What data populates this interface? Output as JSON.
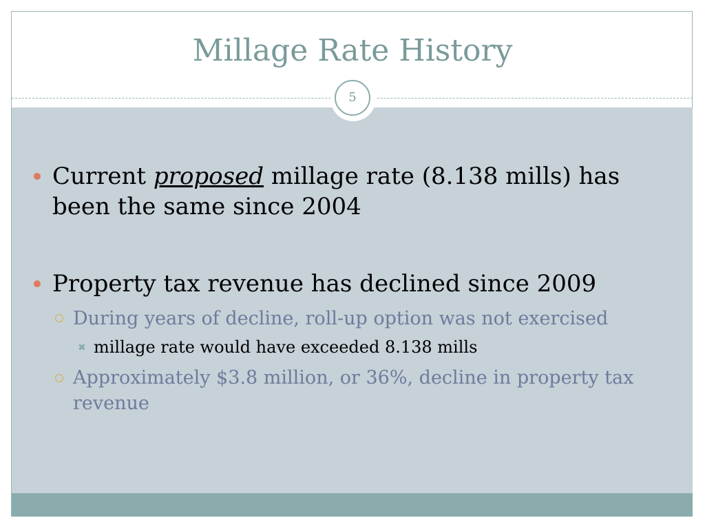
{
  "slide": {
    "title": "Millage Rate History",
    "number": "5"
  },
  "bullets": {
    "b1": {
      "prefix": "Current ",
      "emphasis": "proposed",
      "suffix": " millage rate (8.138 mills) has been the same since 2004"
    },
    "b2": {
      "text": "Property tax revenue has declined since 2009",
      "sub1": "During years of decline, roll-up option was not exercised",
      "sub1_sub": "millage rate would have exceeded 8.138 mills",
      "sub2": "Approximately $3.8 million, or 36%, decline in property tax revenue"
    }
  },
  "colors": {
    "title": "#7a9a9a",
    "content_bg": "#c6d1d8",
    "footer_band": "#8aacac",
    "level1_bullet": "#e07a5f",
    "level2_bullet": "#d4b04a",
    "level2_text": "#6e7b9c"
  },
  "icons": {
    "level1_bullet": "filled-circle-bullet",
    "level2_bullet": "ring-bullet",
    "level3_bullet": "x-mark-bullet"
  }
}
